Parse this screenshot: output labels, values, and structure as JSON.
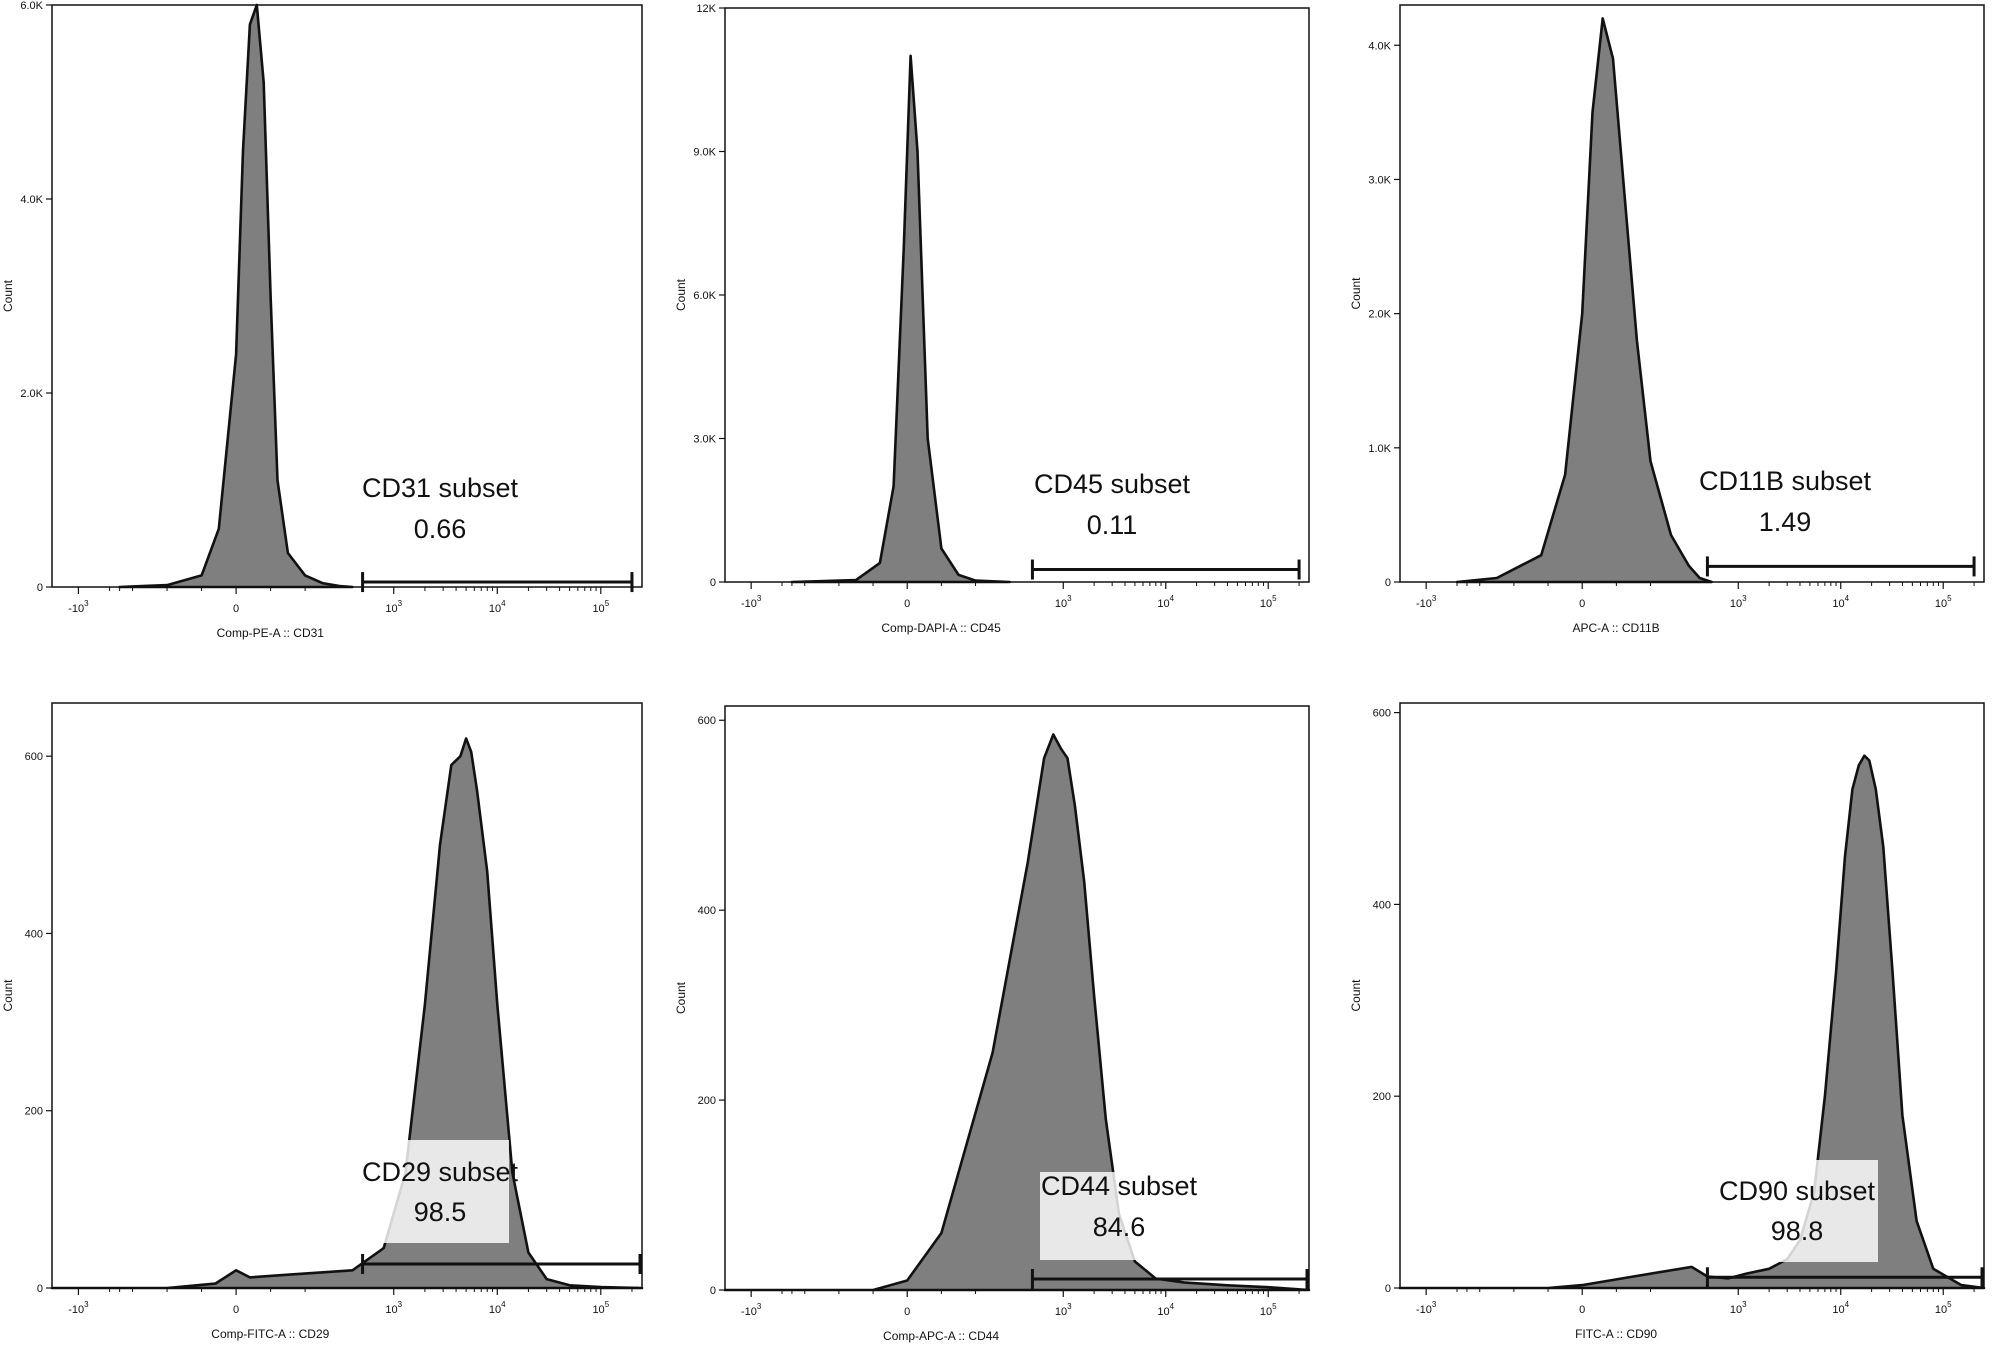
{
  "chart_data": [
    {
      "type": "area",
      "title": "",
      "xlabel": "Comp-PE-A :: CD31",
      "ylabel": "Count",
      "x_scale": "biexponential",
      "x_tick_labels": [
        "-10^3",
        "0",
        "10^3",
        "10^4",
        "10^5"
      ],
      "xlim": [
        -1800,
        250000
      ],
      "ylim": [
        0,
        6000
      ],
      "y_ticks": [
        0,
        2000,
        4000,
        6000
      ],
      "y_tick_labels": [
        "0",
        "2.0K",
        "4.0K",
        "6.0K"
      ],
      "grid": false,
      "series": [
        {
          "x": [
            -400,
            -200,
            -100,
            -50,
            0,
            20,
            40,
            60,
            80,
            100,
            120,
            150,
            200,
            250,
            300,
            400
          ],
          "values": [
            0,
            20,
            120,
            600,
            2400,
            4500,
            5800,
            6000,
            5200,
            3000,
            1100,
            350,
            120,
            40,
            10,
            0
          ]
        }
      ],
      "gate": {
        "label": "CD31 subset",
        "value": "0.66",
        "range": [
          500,
          200000
        ]
      }
    },
    {
      "type": "area",
      "title": "",
      "xlabel": "Comp-DAPI-A :: CD45",
      "ylabel": "Count",
      "x_scale": "biexponential",
      "x_tick_labels": [
        "-10^3",
        "0",
        "10^3",
        "10^4",
        "10^5"
      ],
      "xlim": [
        -1800,
        250000
      ],
      "ylim": [
        0,
        12000
      ],
      "y_ticks": [
        0,
        3000,
        6000,
        9000,
        12000
      ],
      "y_tick_labels": [
        "0",
        "3.0K",
        "6.0K",
        "9.0K",
        "12K"
      ],
      "grid": false,
      "series": [
        {
          "x": [
            -400,
            -150,
            -80,
            -40,
            -10,
            10,
            30,
            60,
            100,
            150,
            200,
            300
          ],
          "values": [
            0,
            40,
            400,
            2000,
            7000,
            11000,
            9000,
            3000,
            700,
            150,
            30,
            0
          ]
        }
      ],
      "gate": {
        "label": "CD45 subset",
        "value": "0.11",
        "range": [
          500,
          200000
        ]
      }
    },
    {
      "type": "area",
      "title": "",
      "xlabel": "APC-A :: CD11B",
      "ylabel": "Count",
      "x_scale": "biexponential",
      "x_tick_labels": [
        "-10^3",
        "0",
        "10^3",
        "10^4",
        "10^5"
      ],
      "xlim": [
        -1800,
        250000
      ],
      "ylim": [
        0,
        4300
      ],
      "y_ticks": [
        0,
        1000,
        2000,
        3000,
        4000
      ],
      "y_tick_labels": [
        "0",
        "1.0K",
        "2.0K",
        "3.0K",
        "4.0K"
      ],
      "grid": false,
      "series": [
        {
          "x": [
            -500,
            -250,
            -120,
            -50,
            0,
            30,
            60,
            90,
            120,
            160,
            200,
            260,
            330,
            420,
            550
          ],
          "values": [
            0,
            30,
            200,
            800,
            2000,
            3500,
            4200,
            3900,
            3000,
            1800,
            900,
            350,
            120,
            30,
            0
          ]
        }
      ],
      "gate": {
        "label": "CD11B subset",
        "value": "1.49",
        "range": [
          500,
          200000
        ]
      }
    },
    {
      "type": "area",
      "title": "",
      "xlabel": "Comp-FITC-A :: CD29",
      "ylabel": "Count",
      "x_scale": "biexponential",
      "x_tick_labels": [
        "-10^3",
        "0",
        "10^3",
        "10^4",
        "10^5"
      ],
      "xlim": [
        -1800,
        250000
      ],
      "ylim": [
        0,
        660
      ],
      "y_ticks": [
        0,
        200,
        400,
        600
      ],
      "y_tick_labels": [
        "0",
        "200",
        "400",
        "600"
      ],
      "grid": false,
      "series": [
        {
          "x": [
            -1800,
            -200,
            -60,
            0,
            40,
            150,
            400,
            800,
            1300,
            2000,
            2800,
            3600,
            4400,
            5000,
            5600,
            6400,
            8000,
            10000,
            14000,
            20000,
            30000,
            50000,
            100000,
            250000
          ],
          "values": [
            0,
            0,
            5,
            20,
            12,
            15,
            20,
            45,
            130,
            320,
            500,
            590,
            600,
            620,
            605,
            560,
            470,
            320,
            130,
            40,
            10,
            3,
            1,
            0
          ]
        }
      ],
      "gate": {
        "label": "CD29 subset",
        "value": "98.5",
        "range": [
          500,
          250000
        ]
      }
    },
    {
      "type": "area",
      "title": "",
      "xlabel": "Comp-APC-A :: CD44",
      "ylabel": "Count",
      "x_scale": "biexponential",
      "x_tick_labels": [
        "-10^3",
        "0",
        "10^3",
        "10^4",
        "10^5"
      ],
      "xlim": [
        -1800,
        250000
      ],
      "ylim": [
        0,
        615
      ],
      "y_ticks": [
        0,
        200,
        400,
        600
      ],
      "y_tick_labels": [
        "0",
        "200",
        "400",
        "600"
      ],
      "grid": false,
      "series": [
        {
          "x": [
            -1800,
            -100,
            0,
            100,
            250,
            450,
            650,
            800,
            950,
            1100,
            1300,
            1600,
            2000,
            2600,
            3500,
            5000,
            8000,
            15000,
            40000,
            100000,
            250000
          ],
          "values": [
            0,
            0,
            10,
            60,
            250,
            450,
            560,
            585,
            570,
            560,
            510,
            430,
            310,
            180,
            80,
            30,
            12,
            8,
            5,
            3,
            0
          ]
        }
      ],
      "gate": {
        "label": "CD44 subset",
        "value": "84.6",
        "range": [
          500,
          250000
        ]
      }
    },
    {
      "type": "area",
      "title": "",
      "xlabel": "FITC-A :: CD90",
      "ylabel": "Count",
      "x_scale": "biexponential",
      "x_tick_labels": [
        "-10^3",
        "0",
        "10^3",
        "10^4",
        "10^5"
      ],
      "xlim": [
        -1800,
        250000
      ],
      "ylim": [
        0,
        610
      ],
      "y_ticks": [
        0,
        200,
        400,
        600
      ],
      "y_tick_labels": [
        "0",
        "200",
        "400",
        "600"
      ],
      "grid": false,
      "series": [
        {
          "x": [
            -1800,
            -100,
            0,
            150,
            350,
            500,
            800,
            1200,
            2000,
            3000,
            4000,
            5500,
            7000,
            9000,
            11000,
            13000,
            15000,
            17000,
            19000,
            22000,
            26000,
            32000,
            40000,
            55000,
            80000,
            150000,
            250000
          ],
          "values": [
            0,
            0,
            3,
            12,
            22,
            12,
            10,
            15,
            20,
            30,
            50,
            100,
            200,
            330,
            450,
            520,
            545,
            555,
            550,
            520,
            460,
            330,
            180,
            70,
            20,
            3,
            0
          ]
        }
      ],
      "gate": {
        "label": "CD90 subset",
        "value": "98.8",
        "range": [
          500,
          250000
        ]
      }
    }
  ]
}
